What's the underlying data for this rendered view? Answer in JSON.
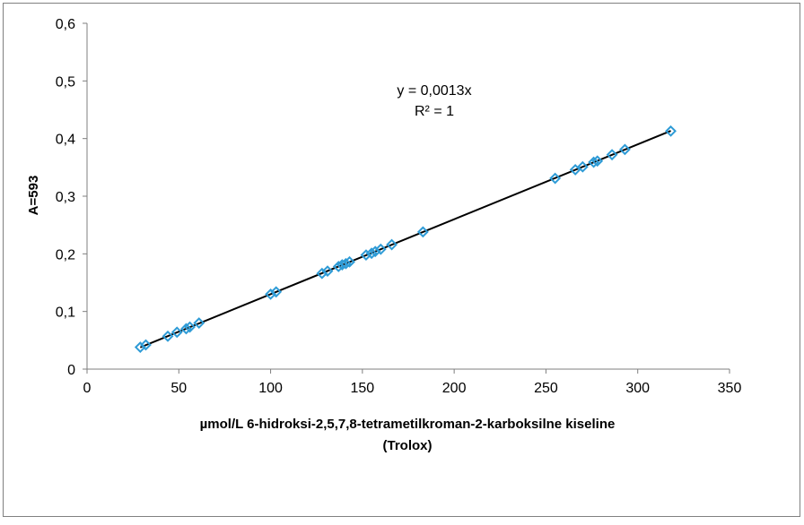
{
  "chart_data": {
    "type": "scatter",
    "title": "",
    "xlabel_line1": "µmol/L 6-hidroksi-2,5,7,8-tetrametilkroman-2-karboksilne kiseline",
    "xlabel_line2": "(Trolox)",
    "ylabel": "A=593",
    "xlim": [
      0,
      350
    ],
    "ylim": [
      0,
      0.6
    ],
    "x_ticks": [
      0,
      50,
      100,
      150,
      200,
      250,
      300,
      350
    ],
    "x_tick_labels": [
      "0",
      "50",
      "100",
      "150",
      "200",
      "250",
      "300",
      "350"
    ],
    "y_ticks": [
      0,
      0.1,
      0.2,
      0.3,
      0.4,
      0.5,
      0.6
    ],
    "y_tick_labels": [
      "0",
      "0,1",
      "0,2",
      "0,3",
      "0,4",
      "0,5",
      "0,6"
    ],
    "grid": false,
    "legend": "none",
    "trendline": {
      "equation": "y = 0,0013x",
      "r_squared": "R² = 1",
      "slope": 0.0013,
      "x_range": [
        29,
        318
      ]
    },
    "series": [
      {
        "marker": "diamond",
        "color": "#2E9BD6",
        "points": [
          [
            29,
            0.038
          ],
          [
            32,
            0.042
          ],
          [
            44,
            0.057
          ],
          [
            49,
            0.064
          ],
          [
            54,
            0.07
          ],
          [
            56,
            0.073
          ],
          [
            61,
            0.08
          ],
          [
            100,
            0.13
          ],
          [
            103,
            0.134
          ],
          [
            128,
            0.166
          ],
          [
            131,
            0.17
          ],
          [
            137,
            0.178
          ],
          [
            139,
            0.181
          ],
          [
            141,
            0.183
          ],
          [
            143,
            0.186
          ],
          [
            152,
            0.198
          ],
          [
            155,
            0.201
          ],
          [
            157,
            0.204
          ],
          [
            160,
            0.208
          ],
          [
            166,
            0.216
          ],
          [
            183,
            0.238
          ],
          [
            255,
            0.331
          ],
          [
            266,
            0.346
          ],
          [
            270,
            0.351
          ],
          [
            276,
            0.359
          ],
          [
            278,
            0.361
          ],
          [
            286,
            0.372
          ],
          [
            293,
            0.381
          ],
          [
            318,
            0.413
          ]
        ]
      }
    ]
  },
  "colors": {
    "axis": "#7f7f7f",
    "trendline": "#000000",
    "marker": "#2E9BD6",
    "frame": "#808080"
  }
}
